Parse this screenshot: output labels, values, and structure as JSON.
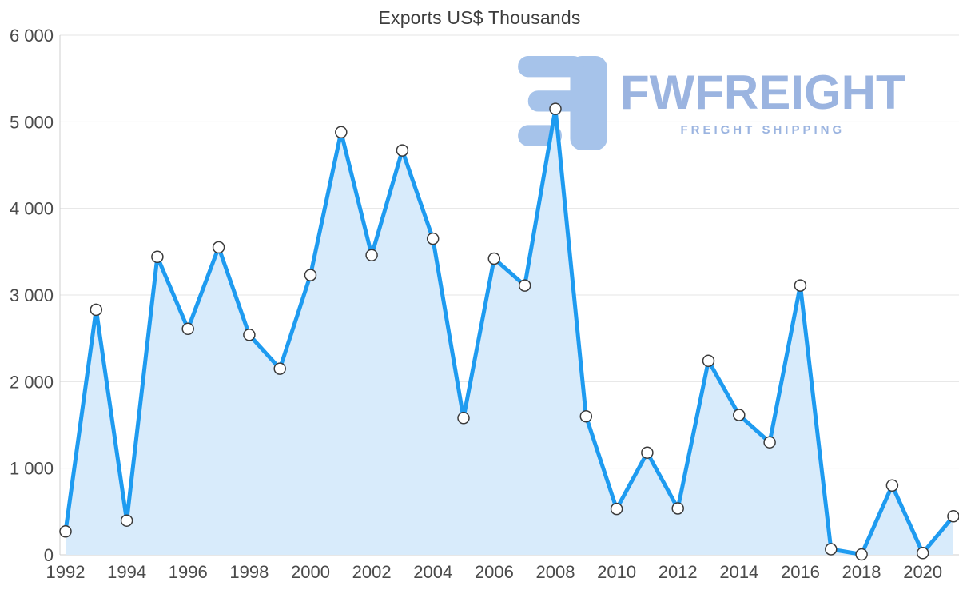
{
  "title": "Exports US$ Thousands",
  "watermark": {
    "brand": "FWFREIGHT",
    "tagline": "FREIGHT SHIPPING"
  },
  "chart_data": {
    "type": "area",
    "title": "Exports US$ Thousands",
    "xlabel": "",
    "ylabel": "",
    "x": [
      1992,
      1993,
      1994,
      1995,
      1996,
      1997,
      1998,
      1999,
      2000,
      2001,
      2002,
      2003,
      2004,
      2005,
      2006,
      2007,
      2008,
      2009,
      2010,
      2011,
      2012,
      2013,
      2014,
      2015,
      2016,
      2017,
      2018,
      2019,
      2020,
      2021
    ],
    "values": [
      270,
      2830,
      395,
      3440,
      2610,
      3550,
      2540,
      2150,
      3230,
      4880,
      3460,
      4670,
      3650,
      1580,
      3420,
      3110,
      5150,
      1600,
      530,
      1180,
      535,
      2240,
      1615,
      1300,
      3110,
      65,
      5,
      800,
      20,
      445
    ],
    "ylim": [
      0,
      6000
    ],
    "y_ticks": [
      0,
      1000,
      2000,
      3000,
      4000,
      5000,
      6000
    ],
    "y_tick_labels": [
      "0",
      "1 000",
      "2 000",
      "3 000",
      "4 000",
      "5 000",
      "6 000"
    ],
    "x_tick_labels": [
      "1992",
      "1994",
      "1996",
      "1998",
      "2000",
      "2002",
      "2004",
      "2006",
      "2008",
      "2010",
      "2012",
      "2014",
      "2016",
      "2018",
      "2020"
    ],
    "grid": true,
    "legend": false,
    "colors": {
      "line": "#1e9bf0",
      "fill": "#d8ebfb",
      "marker_fill": "#ffffff",
      "marker_stroke": "#3a3a3a",
      "grid": "#e4e4e4",
      "axis": "#cfcfcf",
      "axis_text": "#4a4a4a",
      "title_text": "#3d3d3d",
      "watermark": "#9bb4e0",
      "watermark_logo": "#a6c3ea"
    }
  }
}
